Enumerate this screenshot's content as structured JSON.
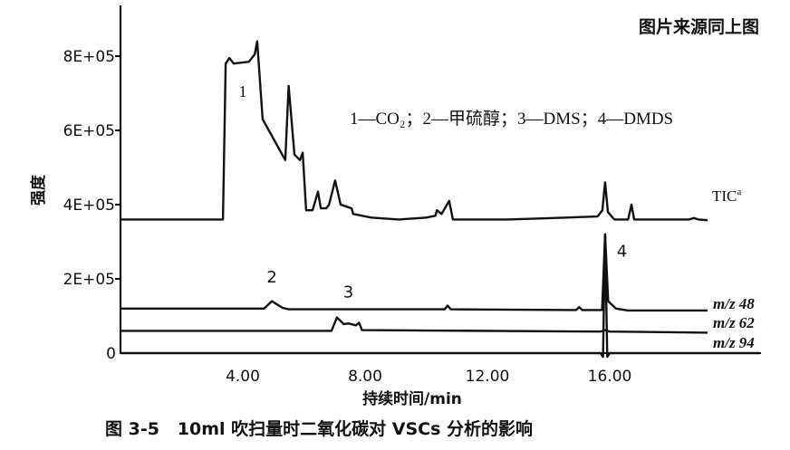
{
  "source_note": "图片来源同上图",
  "caption": "图 3-5   10ml 吹扫量时二氧化碳对 VSCs 分析的影响",
  "chart_data": {
    "type": "line",
    "title": "",
    "xlabel": "持续时间/min",
    "ylabel": "强度",
    "xlim": [
      0,
      20.9
    ],
    "ylim": [
      0,
      850000
    ],
    "x_ticks": [
      "4.00",
      "8.00",
      "12.00",
      "16.00"
    ],
    "x_tick_values": [
      4,
      8,
      12,
      16
    ],
    "y_ticks": [
      "0",
      "2E+05",
      "4E+05",
      "6E+05",
      "8E+05"
    ],
    "y_tick_values": [
      0,
      200000,
      400000,
      600000,
      800000
    ],
    "grid": false,
    "legend_text": "1—CO₂；2—甲硫醇；3—DMS；4—DMDS",
    "peak_labels": [
      {
        "label": "1",
        "x": 4.0,
        "y": 690000
      },
      {
        "label": "2",
        "x": 4.95,
        "y": 190000
      },
      {
        "label": "3",
        "x": 7.45,
        "y": 150000
      },
      {
        "label": "4",
        "x": 16.4,
        "y": 260000
      }
    ],
    "series": [
      {
        "name": "TIC",
        "name_sup": "a",
        "x": [
          0,
          3.35,
          3.44,
          3.56,
          3.7,
          4.2,
          4.39,
          4.47,
          4.65,
          5.39,
          5.5,
          5.69,
          5.87,
          5.96,
          6.07,
          6.28,
          6.46,
          6.55,
          6.73,
          6.82,
          7.02,
          7.2,
          7.56,
          7.61,
          8.2,
          9.1,
          10.0,
          10.3,
          10.35,
          10.5,
          10.75,
          10.87,
          12.65,
          13.8,
          15.6,
          15.76,
          15.85,
          15.94,
          16.15,
          16.6,
          16.71,
          16.8,
          18.6,
          18.75,
          18.9,
          19.2
        ],
        "y": [
          360000,
          360000,
          780000,
          795000,
          780000,
          785000,
          805000,
          840000,
          630000,
          520000,
          720000,
          535000,
          520000,
          540000,
          385000,
          385000,
          435000,
          390000,
          390000,
          400000,
          465000,
          400000,
          390000,
          375000,
          365000,
          360000,
          365000,
          370000,
          385000,
          375000,
          410000,
          360000,
          360000,
          363000,
          368000,
          385000,
          460000,
          380000,
          360000,
          360000,
          400000,
          360000,
          360000,
          364000,
          360000,
          358000
        ]
      },
      {
        "name": "m/z 48",
        "x": [
          0,
          4.7,
          4.95,
          5.3,
          5.5,
          10.6,
          10.7,
          10.8,
          14.9,
          15.0,
          15.1,
          15.75,
          15.85,
          15.95,
          16.2,
          16.6,
          19.2
        ],
        "y": [
          120000,
          120000,
          140000,
          122000,
          118000,
          118000,
          128000,
          118000,
          116000,
          124000,
          116000,
          116000,
          320000,
          140000,
          120000,
          115000,
          115000
        ]
      },
      {
        "name": "m/z 62",
        "x": [
          0,
          6.9,
          7.08,
          7.3,
          7.45,
          7.7,
          7.8,
          7.9,
          15.7,
          15.85,
          16.0,
          19.2
        ],
        "y": [
          60000,
          60000,
          96000,
          78000,
          80000,
          75000,
          82000,
          62000,
          58000,
          62000,
          58000,
          55000
        ]
      },
      {
        "name": "m/z 94",
        "x": [
          0,
          15.7,
          15.78,
          15.85,
          15.92,
          16.0,
          20.9
        ],
        "y": [
          0,
          0,
          -10000,
          320000,
          -10000,
          0,
          0
        ]
      }
    ]
  }
}
